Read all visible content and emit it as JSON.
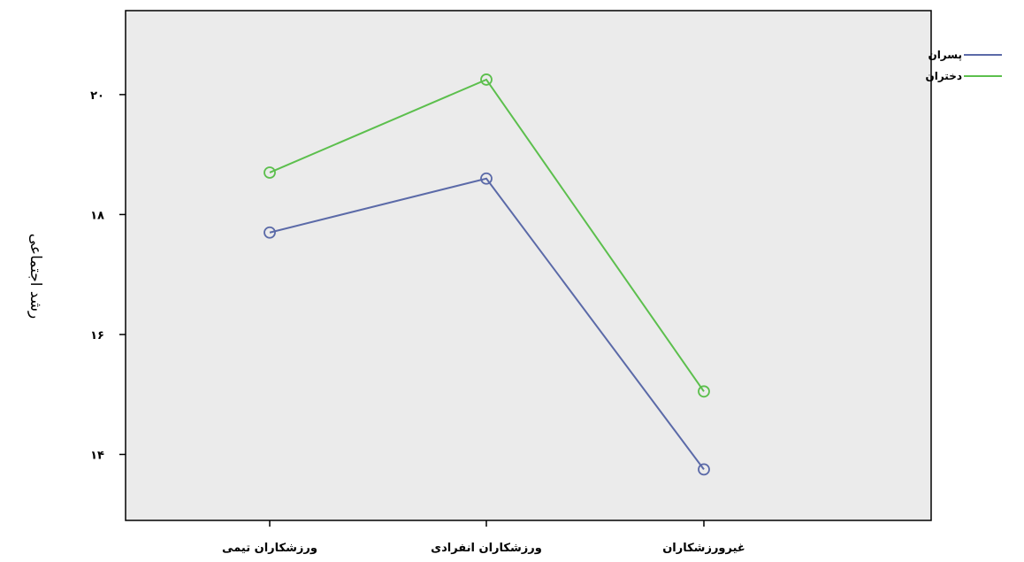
{
  "chart_data": {
    "type": "line",
    "categories": [
      "ورزشکاران تیمی",
      "ورزشکاران انفرادی",
      "غیرورزشکاران"
    ],
    "series": [
      {
        "name": "پسران",
        "values": [
          17.7,
          18.6,
          13.75
        ],
        "color": "#5b6aa8"
      },
      {
        "name": "دختران",
        "values": [
          18.7,
          20.25,
          15.05
        ],
        "color": "#5cbf4d"
      }
    ],
    "ylabel": "رشد اجتماعی",
    "xlabel": "",
    "yticks": [
      14,
      16,
      18,
      20
    ],
    "ytick_labels": [
      "١۴",
      "١۶",
      "١٨",
      "٢٠"
    ],
    "ylim": [
      12.9,
      21.4
    ],
    "plot_background": "#ebebeb",
    "grid": false,
    "legend_position": "top-right",
    "marker": "open-circle"
  }
}
